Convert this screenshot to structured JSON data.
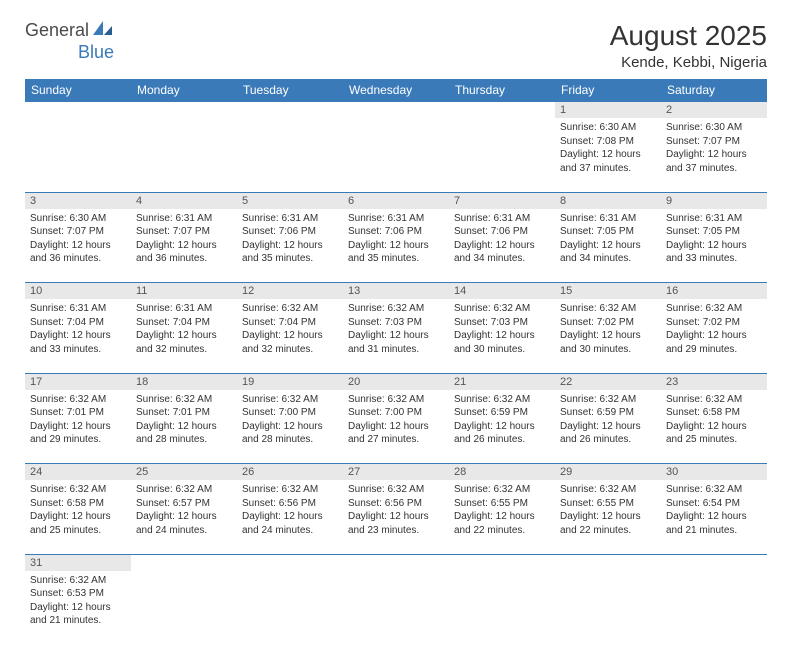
{
  "logo": {
    "text1": "General",
    "text2": "Blue"
  },
  "title": "August 2025",
  "location": "Kende, Kebbi, Nigeria",
  "colors": {
    "header_bg": "#3a7ab8",
    "header_text": "#ffffff",
    "daynum_bg": "#e8e8e8",
    "border": "#3a7ab8",
    "text": "#333333",
    "logo_blue": "#3a7ab8",
    "logo_gray": "#4a4a4a"
  },
  "day_headers": [
    "Sunday",
    "Monday",
    "Tuesday",
    "Wednesday",
    "Thursday",
    "Friday",
    "Saturday"
  ],
  "weeks": [
    [
      null,
      null,
      null,
      null,
      null,
      {
        "d": "1",
        "sr": "Sunrise: 6:30 AM",
        "ss": "Sunset: 7:08 PM",
        "dl": "Daylight: 12 hours and 37 minutes."
      },
      {
        "d": "2",
        "sr": "Sunrise: 6:30 AM",
        "ss": "Sunset: 7:07 PM",
        "dl": "Daylight: 12 hours and 37 minutes."
      }
    ],
    [
      {
        "d": "3",
        "sr": "Sunrise: 6:30 AM",
        "ss": "Sunset: 7:07 PM",
        "dl": "Daylight: 12 hours and 36 minutes."
      },
      {
        "d": "4",
        "sr": "Sunrise: 6:31 AM",
        "ss": "Sunset: 7:07 PM",
        "dl": "Daylight: 12 hours and 36 minutes."
      },
      {
        "d": "5",
        "sr": "Sunrise: 6:31 AM",
        "ss": "Sunset: 7:06 PM",
        "dl": "Daylight: 12 hours and 35 minutes."
      },
      {
        "d": "6",
        "sr": "Sunrise: 6:31 AM",
        "ss": "Sunset: 7:06 PM",
        "dl": "Daylight: 12 hours and 35 minutes."
      },
      {
        "d": "7",
        "sr": "Sunrise: 6:31 AM",
        "ss": "Sunset: 7:06 PM",
        "dl": "Daylight: 12 hours and 34 minutes."
      },
      {
        "d": "8",
        "sr": "Sunrise: 6:31 AM",
        "ss": "Sunset: 7:05 PM",
        "dl": "Daylight: 12 hours and 34 minutes."
      },
      {
        "d": "9",
        "sr": "Sunrise: 6:31 AM",
        "ss": "Sunset: 7:05 PM",
        "dl": "Daylight: 12 hours and 33 minutes."
      }
    ],
    [
      {
        "d": "10",
        "sr": "Sunrise: 6:31 AM",
        "ss": "Sunset: 7:04 PM",
        "dl": "Daylight: 12 hours and 33 minutes."
      },
      {
        "d": "11",
        "sr": "Sunrise: 6:31 AM",
        "ss": "Sunset: 7:04 PM",
        "dl": "Daylight: 12 hours and 32 minutes."
      },
      {
        "d": "12",
        "sr": "Sunrise: 6:32 AM",
        "ss": "Sunset: 7:04 PM",
        "dl": "Daylight: 12 hours and 32 minutes."
      },
      {
        "d": "13",
        "sr": "Sunrise: 6:32 AM",
        "ss": "Sunset: 7:03 PM",
        "dl": "Daylight: 12 hours and 31 minutes."
      },
      {
        "d": "14",
        "sr": "Sunrise: 6:32 AM",
        "ss": "Sunset: 7:03 PM",
        "dl": "Daylight: 12 hours and 30 minutes."
      },
      {
        "d": "15",
        "sr": "Sunrise: 6:32 AM",
        "ss": "Sunset: 7:02 PM",
        "dl": "Daylight: 12 hours and 30 minutes."
      },
      {
        "d": "16",
        "sr": "Sunrise: 6:32 AM",
        "ss": "Sunset: 7:02 PM",
        "dl": "Daylight: 12 hours and 29 minutes."
      }
    ],
    [
      {
        "d": "17",
        "sr": "Sunrise: 6:32 AM",
        "ss": "Sunset: 7:01 PM",
        "dl": "Daylight: 12 hours and 29 minutes."
      },
      {
        "d": "18",
        "sr": "Sunrise: 6:32 AM",
        "ss": "Sunset: 7:01 PM",
        "dl": "Daylight: 12 hours and 28 minutes."
      },
      {
        "d": "19",
        "sr": "Sunrise: 6:32 AM",
        "ss": "Sunset: 7:00 PM",
        "dl": "Daylight: 12 hours and 28 minutes."
      },
      {
        "d": "20",
        "sr": "Sunrise: 6:32 AM",
        "ss": "Sunset: 7:00 PM",
        "dl": "Daylight: 12 hours and 27 minutes."
      },
      {
        "d": "21",
        "sr": "Sunrise: 6:32 AM",
        "ss": "Sunset: 6:59 PM",
        "dl": "Daylight: 12 hours and 26 minutes."
      },
      {
        "d": "22",
        "sr": "Sunrise: 6:32 AM",
        "ss": "Sunset: 6:59 PM",
        "dl": "Daylight: 12 hours and 26 minutes."
      },
      {
        "d": "23",
        "sr": "Sunrise: 6:32 AM",
        "ss": "Sunset: 6:58 PM",
        "dl": "Daylight: 12 hours and 25 minutes."
      }
    ],
    [
      {
        "d": "24",
        "sr": "Sunrise: 6:32 AM",
        "ss": "Sunset: 6:58 PM",
        "dl": "Daylight: 12 hours and 25 minutes."
      },
      {
        "d": "25",
        "sr": "Sunrise: 6:32 AM",
        "ss": "Sunset: 6:57 PM",
        "dl": "Daylight: 12 hours and 24 minutes."
      },
      {
        "d": "26",
        "sr": "Sunrise: 6:32 AM",
        "ss": "Sunset: 6:56 PM",
        "dl": "Daylight: 12 hours and 24 minutes."
      },
      {
        "d": "27",
        "sr": "Sunrise: 6:32 AM",
        "ss": "Sunset: 6:56 PM",
        "dl": "Daylight: 12 hours and 23 minutes."
      },
      {
        "d": "28",
        "sr": "Sunrise: 6:32 AM",
        "ss": "Sunset: 6:55 PM",
        "dl": "Daylight: 12 hours and 22 minutes."
      },
      {
        "d": "29",
        "sr": "Sunrise: 6:32 AM",
        "ss": "Sunset: 6:55 PM",
        "dl": "Daylight: 12 hours and 22 minutes."
      },
      {
        "d": "30",
        "sr": "Sunrise: 6:32 AM",
        "ss": "Sunset: 6:54 PM",
        "dl": "Daylight: 12 hours and 21 minutes."
      }
    ],
    [
      {
        "d": "31",
        "sr": "Sunrise: 6:32 AM",
        "ss": "Sunset: 6:53 PM",
        "dl": "Daylight: 12 hours and 21 minutes."
      },
      null,
      null,
      null,
      null,
      null,
      null
    ]
  ]
}
